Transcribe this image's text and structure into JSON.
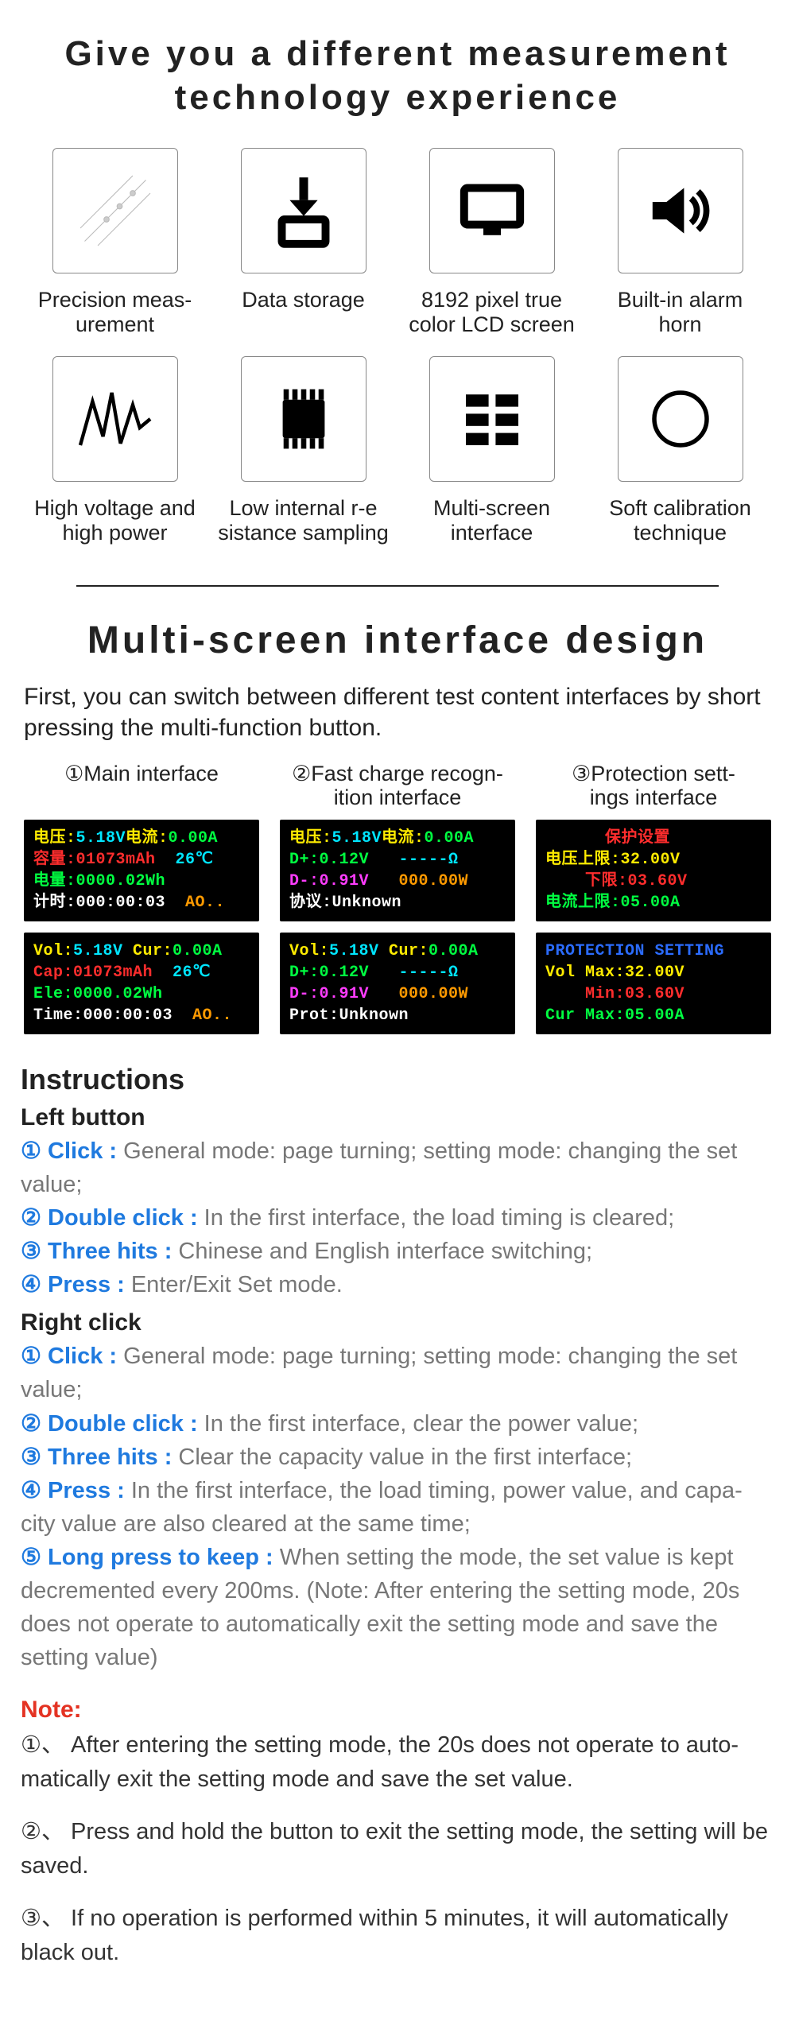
{
  "title": "Give you a different measurement\ntechnology experience",
  "features": [
    {
      "label": "Precision meas-\nurement",
      "icon": "circuit"
    },
    {
      "label": "Data storage",
      "icon": "download"
    },
    {
      "label": "8192 pixel true\ncolor LCD screen",
      "icon": "monitor"
    },
    {
      "label": "Built-in alarm\nhorn",
      "icon": "speaker"
    },
    {
      "label": "High voltage and\nhigh power",
      "icon": "wave"
    },
    {
      "label": "Low internal r-e\nsistance sampling",
      "icon": "chip"
    },
    {
      "label": "Multi-screen\ninterface",
      "icon": "grid"
    },
    {
      "label": "Soft calibration\ntechnique",
      "icon": "circle"
    }
  ],
  "subtitle": "Multi-screen interface design",
  "intro": "First, you can switch between different test content interfaces by short pressing the multi-function button.",
  "screens": [
    {
      "title": "①Main interface",
      "cn": [
        {
          "t": "电压:",
          "c": "c-yellow"
        },
        {
          "t": "5.18V",
          "c": "c-cyan"
        },
        {
          "t": "电流:",
          "c": "c-yellow"
        },
        {
          "t": "0.00A",
          "c": "c-green"
        },
        {
          "br": 1
        },
        {
          "t": "容量:",
          "c": "c-red"
        },
        {
          "t": "01073mAh",
          "c": "c-red"
        },
        {
          "t": "  26℃",
          "c": "c-cyan"
        },
        {
          "br": 1
        },
        {
          "t": "电量:",
          "c": "c-green"
        },
        {
          "t": "0000.02Wh",
          "c": "c-green"
        },
        {
          "br": 1
        },
        {
          "t": "计时:000:00:03",
          "c": "c-white"
        },
        {
          "t": "  AO..",
          "c": "c-orange"
        }
      ],
      "en": [
        {
          "t": "Vol:",
          "c": "c-yellow"
        },
        {
          "t": "5.18V",
          "c": "c-cyan"
        },
        {
          "t": " Cur:",
          "c": "c-yellow"
        },
        {
          "t": "0.00A",
          "c": "c-green"
        },
        {
          "br": 1
        },
        {
          "t": "Cap:",
          "c": "c-red"
        },
        {
          "t": "01073mAh",
          "c": "c-red"
        },
        {
          "t": "  26℃",
          "c": "c-cyan"
        },
        {
          "br": 1
        },
        {
          "t": "Ele:",
          "c": "c-green"
        },
        {
          "t": "0000.02Wh",
          "c": "c-green"
        },
        {
          "br": 1
        },
        {
          "t": "Time:000:00:03",
          "c": "c-white"
        },
        {
          "t": "  AO..",
          "c": "c-orange"
        }
      ]
    },
    {
      "title": "②Fast charge recogn-\nition interface",
      "cn": [
        {
          "t": "电压:",
          "c": "c-yellow"
        },
        {
          "t": "5.18V",
          "c": "c-cyan"
        },
        {
          "t": "电流:",
          "c": "c-yellow"
        },
        {
          "t": "0.00A",
          "c": "c-green"
        },
        {
          "br": 1
        },
        {
          "t": "D+:",
          "c": "c-green"
        },
        {
          "t": "0.12V",
          "c": "c-green"
        },
        {
          "t": "   -----Ω",
          "c": "c-cyan"
        },
        {
          "br": 1
        },
        {
          "t": "D-:",
          "c": "c-mag"
        },
        {
          "t": "0.91V",
          "c": "c-mag"
        },
        {
          "t": "   000.00W",
          "c": "c-orange"
        },
        {
          "br": 1
        },
        {
          "t": "协议:",
          "c": "c-white"
        },
        {
          "t": "Unknown",
          "c": "c-white"
        }
      ],
      "en": [
        {
          "t": "Vol:",
          "c": "c-yellow"
        },
        {
          "t": "5.18V",
          "c": "c-cyan"
        },
        {
          "t": " Cur:",
          "c": "c-yellow"
        },
        {
          "t": "0.00A",
          "c": "c-green"
        },
        {
          "br": 1
        },
        {
          "t": "D+:",
          "c": "c-green"
        },
        {
          "t": "0.12V",
          "c": "c-green"
        },
        {
          "t": "   -----Ω",
          "c": "c-cyan"
        },
        {
          "br": 1
        },
        {
          "t": "D-:",
          "c": "c-mag"
        },
        {
          "t": "0.91V",
          "c": "c-mag"
        },
        {
          "t": "   000.00W",
          "c": "c-orange"
        },
        {
          "br": 1
        },
        {
          "t": "Prot:",
          "c": "c-white"
        },
        {
          "t": "Unknown",
          "c": "c-white"
        }
      ]
    },
    {
      "title": "③Protection sett-\nings interface",
      "cn": [
        {
          "t": "      保护设置",
          "c": "c-red"
        },
        {
          "br": 1
        },
        {
          "t": "电压上限:",
          "c": "c-yellow"
        },
        {
          "t": "32.00V",
          "c": "c-yellow"
        },
        {
          "br": 1
        },
        {
          "t": "    下限:",
          "c": "c-red"
        },
        {
          "t": "03.60V",
          "c": "c-red"
        },
        {
          "br": 1
        },
        {
          "t": "电流上限:",
          "c": "c-green"
        },
        {
          "t": "05.00A",
          "c": "c-green"
        }
      ],
      "en": [
        {
          "t": "PROTECTION SETTING",
          "c": "c-blue"
        },
        {
          "br": 1
        },
        {
          "t": "Vol Max:",
          "c": "c-yellow"
        },
        {
          "t": "32.00V",
          "c": "c-yellow"
        },
        {
          "br": 1
        },
        {
          "t": "    Min:",
          "c": "c-red"
        },
        {
          "t": "03.60V",
          "c": "c-red"
        },
        {
          "br": 1
        },
        {
          "t": "Cur Max:",
          "c": "c-green"
        },
        {
          "t": "05.00A",
          "c": "c-green"
        }
      ]
    }
  ],
  "instructions_head": "Instructions",
  "left_head": "Left button",
  "left": [
    {
      "b": "① Click : ",
      "t": "General mode: page turning; setting mode: changing the set value;"
    },
    {
      "b": "② Double click : ",
      "t": "In the first interface, the load timing is cleared;"
    },
    {
      "b": "③ Three hits : ",
      "t": "Chinese and English interface switching;"
    },
    {
      "b": "④ Press : ",
      "t": "Enter/Exit Set mode."
    }
  ],
  "right_head": "Right click",
  "right": [
    {
      "b": "① Click : ",
      "t": "General mode: page turning; setting mode: changing the set value;"
    },
    {
      "b": "② Double click : ",
      "t": "In the first interface, clear the power value;"
    },
    {
      "b": "③ Three hits : ",
      "t": "Clear the capacity value in the first interface;"
    },
    {
      "b": "④ Press : ",
      "t": "In the first interface, the load timing, power value, and capa-city value are also cleared at the same time;"
    },
    {
      "b": "⑤ Long press to keep : ",
      "t": "When setting the mode, the set value is kept decremented every 200ms. (Note: After entering the setting mode, 20s does not operate to automatically exit the setting mode and save the setting value)"
    }
  ],
  "note_head": "Note:",
  "notes": [
    "①、 After entering the setting mode, the 20s does not operate to auto-matically exit the setting mode and save the set value.",
    "②、 Press and hold the button to exit the setting mode, the setting will be saved.",
    "③、 If no operation is performed within 5 minutes, it will automatically black out."
  ],
  "colors": {
    "blue_accent": "#1f7adf",
    "note_red": "#e43323",
    "body_gray": "#777777",
    "lcd_bg": "#000000"
  }
}
